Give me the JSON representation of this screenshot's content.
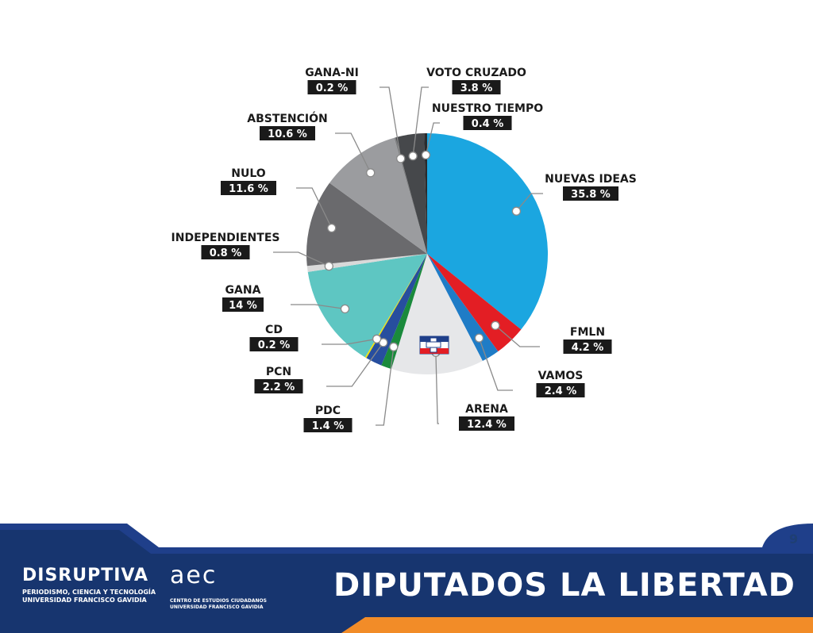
{
  "chart_data": {
    "type": "pie",
    "slices": [
      {
        "label": "NUEVAS IDEAS",
        "value": 35.8,
        "display": "35.8 %",
        "color": "#1ba6e0"
      },
      {
        "label": "FMLN",
        "value": 4.2,
        "display": "4.2 %",
        "color": "#e31e24"
      },
      {
        "label": "VAMOS",
        "value": 2.4,
        "display": "2.4 %",
        "color": "#1f7cc6"
      },
      {
        "label": "ARENA",
        "value": 12.4,
        "display": "12.4 %",
        "color": "#e6e7e9"
      },
      {
        "label": "PDC",
        "value": 1.4,
        "display": "1.4 %",
        "color": "#1a8a3c"
      },
      {
        "label": "PCN",
        "value": 2.2,
        "display": "2.2 %",
        "color": "#274e9e"
      },
      {
        "label": "CD",
        "value": 0.2,
        "display": "0.2 %",
        "color": "#f4e100"
      },
      {
        "label": "GANA",
        "value": 14,
        "display": "14 %",
        "color": "#5ec6c2"
      },
      {
        "label": "INDEPENDIENTES",
        "value": 0.8,
        "display": "0.8 %",
        "color": "#d9d9d9"
      },
      {
        "label": "NULO",
        "value": 11.6,
        "display": "11.6 %",
        "color": "#6a6a6d"
      },
      {
        "label": "ABSTENCIÓN",
        "value": 10.6,
        "display": "10.6 %",
        "color": "#9b9c9f"
      },
      {
        "label": "GANA-NI",
        "value": 0.2,
        "display": "0.2 %",
        "color": "#7f8082"
      },
      {
        "label": "VOTO CRUZADO",
        "value": 3.8,
        "display": "3.8 %",
        "color": "#46484b"
      },
      {
        "label": "NUESTRO TIEMPO",
        "value": 0.4,
        "display": "0.4 %",
        "color": "#2a2b2d"
      }
    ]
  },
  "footer": {
    "title": "DIPUTADOS LA LIBERTAD",
    "page_number": "9",
    "brand_name": "DISRUPTIVA",
    "brand_sub1": "PERIODISMO, CIENCIA Y TECNOLOGÍA",
    "brand_sub2": "UNIVERSIDAD FRANCISCO GAVIDIA",
    "org_logo": "aec",
    "org_sub1": "CENTRO DE ESTUDIOS CIUDADANOS",
    "org_sub2": "UNIVERSIDAD FRANCISCO GAVIDIA"
  }
}
